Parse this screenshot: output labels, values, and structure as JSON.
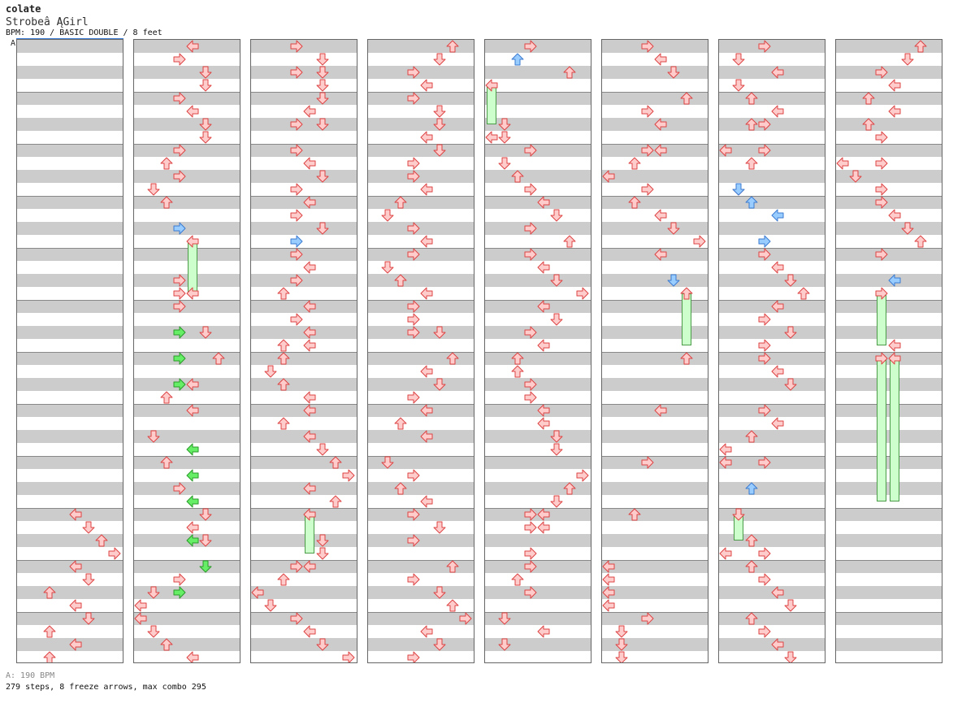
{
  "header": {
    "title": "colate",
    "subtitle": "Strobeâ ĄGirl",
    "meta": "BPM: 190 / BASIC DOUBLE / 8 feet",
    "bpm_marker": "A"
  },
  "footer": {
    "legend": "A: 190 BPM",
    "summary": "279 steps, 8 freeze arrows, max combo 295"
  },
  "colors": {
    "normal": "#ffcccc",
    "blue": "#99ccff",
    "green": "#66ee66",
    "freeze": "#ccffcc"
  },
  "chart": {
    "columns": 8,
    "rows_per_column": 48,
    "measure_every": 4,
    "lanes": 8,
    "notes": [
      [
        [
          36,
          4,
          "n"
        ],
        [
          37,
          5,
          "n"
        ],
        [
          38,
          6,
          "n"
        ],
        [
          39,
          7,
          "n"
        ],
        [
          40,
          4,
          "n"
        ],
        [
          41,
          5,
          "n"
        ],
        [
          42,
          2,
          "n"
        ],
        [
          43,
          4,
          "n"
        ],
        [
          44,
          5,
          "n"
        ],
        [
          45,
          2,
          "n"
        ],
        [
          46,
          4,
          "n"
        ],
        [
          47,
          2,
          "n"
        ]
      ],
      [
        [
          0,
          4,
          "n"
        ],
        [
          1,
          3,
          "n"
        ],
        [
          2,
          5,
          "n"
        ],
        [
          3,
          5,
          "n"
        ],
        [
          4,
          3,
          "n"
        ],
        [
          5,
          4,
          "n"
        ],
        [
          6,
          5,
          "n"
        ],
        [
          7,
          5,
          "n"
        ],
        [
          8,
          3,
          "n"
        ],
        [
          9,
          2,
          "n"
        ],
        [
          10,
          3,
          "n"
        ],
        [
          11,
          1,
          "n"
        ],
        [
          12,
          2,
          "n"
        ],
        [
          14,
          3,
          "b"
        ],
        [
          15,
          4,
          "n"
        ],
        [
          18,
          3,
          "n"
        ],
        [
          19,
          3,
          "n"
        ],
        [
          19,
          4,
          "n"
        ],
        [
          20,
          3,
          "n"
        ],
        [
          22,
          3,
          "g"
        ],
        [
          22,
          5,
          "n"
        ],
        [
          24,
          3,
          "g"
        ],
        [
          24,
          6,
          "n"
        ],
        [
          26,
          3,
          "g"
        ],
        [
          26,
          4,
          "n"
        ],
        [
          27,
          2,
          "n"
        ],
        [
          28,
          4,
          "n"
        ],
        [
          30,
          1,
          "n"
        ],
        [
          31,
          4,
          "g"
        ],
        [
          32,
          2,
          "n"
        ],
        [
          33,
          4,
          "g"
        ],
        [
          34,
          3,
          "n"
        ],
        [
          35,
          4,
          "g"
        ],
        [
          36,
          5,
          "n"
        ],
        [
          37,
          4,
          "n"
        ],
        [
          38,
          4,
          "g"
        ],
        [
          38,
          5,
          "n"
        ],
        [
          40,
          5,
          "g"
        ],
        [
          41,
          3,
          "n"
        ],
        [
          42,
          1,
          "n"
        ],
        [
          42,
          3,
          "g"
        ],
        [
          43,
          0,
          "n"
        ],
        [
          44,
          0,
          "n"
        ],
        [
          45,
          1,
          "n"
        ],
        [
          46,
          2,
          "n"
        ],
        [
          47,
          4,
          "n"
        ]
      ],
      [
        [
          0,
          3,
          "n"
        ],
        [
          1,
          5,
          "n"
        ],
        [
          2,
          3,
          "n"
        ],
        [
          2,
          5,
          "n"
        ],
        [
          3,
          5,
          "n"
        ],
        [
          4,
          5,
          "n"
        ],
        [
          5,
          4,
          "n"
        ],
        [
          6,
          3,
          "n"
        ],
        [
          6,
          5,
          "n"
        ],
        [
          8,
          3,
          "n"
        ],
        [
          9,
          4,
          "n"
        ],
        [
          10,
          5,
          "n"
        ],
        [
          11,
          3,
          "n"
        ],
        [
          12,
          4,
          "n"
        ],
        [
          13,
          3,
          "n"
        ],
        [
          14,
          5,
          "n"
        ],
        [
          15,
          3,
          "b"
        ],
        [
          16,
          3,
          "n"
        ],
        [
          17,
          4,
          "n"
        ],
        [
          18,
          3,
          "n"
        ],
        [
          19,
          2,
          "n"
        ],
        [
          20,
          4,
          "n"
        ],
        [
          21,
          3,
          "n"
        ],
        [
          22,
          4,
          "n"
        ],
        [
          23,
          2,
          "n"
        ],
        [
          23,
          4,
          "n"
        ],
        [
          24,
          2,
          "n"
        ],
        [
          25,
          1,
          "n"
        ],
        [
          26,
          2,
          "n"
        ],
        [
          27,
          4,
          "n"
        ],
        [
          28,
          4,
          "n"
        ],
        [
          29,
          2,
          "n"
        ],
        [
          30,
          4,
          "n"
        ],
        [
          31,
          5,
          "n"
        ],
        [
          32,
          6,
          "n"
        ],
        [
          33,
          7,
          "n"
        ],
        [
          34,
          4,
          "n"
        ],
        [
          35,
          6,
          "n"
        ],
        [
          36,
          4,
          "n"
        ],
        [
          38,
          5,
          "n"
        ],
        [
          39,
          5,
          "n"
        ],
        [
          40,
          3,
          "n"
        ],
        [
          40,
          4,
          "n"
        ],
        [
          41,
          2,
          "n"
        ],
        [
          42,
          0,
          "n"
        ],
        [
          43,
          1,
          "n"
        ],
        [
          44,
          3,
          "n"
        ],
        [
          45,
          4,
          "n"
        ],
        [
          46,
          5,
          "n"
        ],
        [
          47,
          7,
          "n"
        ]
      ],
      [
        [
          0,
          6,
          "n"
        ],
        [
          1,
          5,
          "n"
        ],
        [
          2,
          3,
          "n"
        ],
        [
          3,
          4,
          "n"
        ],
        [
          4,
          3,
          "n"
        ],
        [
          5,
          5,
          "n"
        ],
        [
          6,
          5,
          "n"
        ],
        [
          7,
          4,
          "n"
        ],
        [
          8,
          5,
          "n"
        ],
        [
          9,
          3,
          "n"
        ],
        [
          10,
          3,
          "n"
        ],
        [
          11,
          4,
          "n"
        ],
        [
          12,
          2,
          "n"
        ],
        [
          13,
          1,
          "n"
        ],
        [
          14,
          3,
          "n"
        ],
        [
          15,
          4,
          "n"
        ],
        [
          16,
          3,
          "n"
        ],
        [
          17,
          1,
          "n"
        ],
        [
          18,
          2,
          "n"
        ],
        [
          19,
          4,
          "n"
        ],
        [
          20,
          3,
          "n"
        ],
        [
          21,
          3,
          "n"
        ],
        [
          22,
          3,
          "n"
        ],
        [
          22,
          5,
          "n"
        ],
        [
          24,
          6,
          "n"
        ],
        [
          25,
          4,
          "n"
        ],
        [
          26,
          5,
          "n"
        ],
        [
          27,
          3,
          "n"
        ],
        [
          28,
          4,
          "n"
        ],
        [
          29,
          2,
          "n"
        ],
        [
          30,
          4,
          "n"
        ],
        [
          32,
          1,
          "n"
        ],
        [
          33,
          3,
          "n"
        ],
        [
          34,
          2,
          "n"
        ],
        [
          35,
          4,
          "n"
        ],
        [
          36,
          3,
          "n"
        ],
        [
          37,
          5,
          "n"
        ],
        [
          38,
          3,
          "n"
        ],
        [
          40,
          6,
          "n"
        ],
        [
          41,
          3,
          "n"
        ],
        [
          42,
          5,
          "n"
        ],
        [
          43,
          6,
          "n"
        ],
        [
          44,
          7,
          "n"
        ],
        [
          45,
          4,
          "n"
        ],
        [
          46,
          5,
          "n"
        ],
        [
          47,
          3,
          "n"
        ]
      ],
      [
        [
          0,
          3,
          "n"
        ],
        [
          1,
          2,
          "b"
        ],
        [
          2,
          6,
          "n"
        ],
        [
          3,
          0,
          "n"
        ],
        [
          6,
          1,
          "n"
        ],
        [
          7,
          0,
          "n"
        ],
        [
          7,
          1,
          "n"
        ],
        [
          8,
          3,
          "n"
        ],
        [
          9,
          1,
          "n"
        ],
        [
          10,
          2,
          "n"
        ],
        [
          11,
          3,
          "n"
        ],
        [
          12,
          4,
          "n"
        ],
        [
          13,
          5,
          "n"
        ],
        [
          14,
          3,
          "n"
        ],
        [
          15,
          6,
          "n"
        ],
        [
          16,
          3,
          "n"
        ],
        [
          17,
          4,
          "n"
        ],
        [
          18,
          5,
          "n"
        ],
        [
          19,
          7,
          "n"
        ],
        [
          20,
          4,
          "n"
        ],
        [
          21,
          5,
          "n"
        ],
        [
          22,
          3,
          "n"
        ],
        [
          23,
          4,
          "n"
        ],
        [
          24,
          2,
          "n"
        ],
        [
          25,
          2,
          "n"
        ],
        [
          26,
          3,
          "n"
        ],
        [
          27,
          3,
          "n"
        ],
        [
          28,
          4,
          "n"
        ],
        [
          29,
          4,
          "n"
        ],
        [
          30,
          5,
          "n"
        ],
        [
          31,
          5,
          "n"
        ],
        [
          33,
          7,
          "n"
        ],
        [
          34,
          6,
          "n"
        ],
        [
          35,
          5,
          "n"
        ],
        [
          36,
          3,
          "n"
        ],
        [
          36,
          4,
          "n"
        ],
        [
          37,
          3,
          "n"
        ],
        [
          37,
          4,
          "n"
        ],
        [
          39,
          3,
          "n"
        ],
        [
          40,
          3,
          "n"
        ],
        [
          41,
          2,
          "n"
        ],
        [
          42,
          3,
          "n"
        ],
        [
          44,
          1,
          "n"
        ],
        [
          45,
          4,
          "n"
        ],
        [
          46,
          1,
          "n"
        ]
      ],
      [
        [
          0,
          3,
          "n"
        ],
        [
          1,
          4,
          "n"
        ],
        [
          2,
          5,
          "n"
        ],
        [
          4,
          6,
          "n"
        ],
        [
          5,
          3,
          "n"
        ],
        [
          6,
          4,
          "n"
        ],
        [
          8,
          3,
          "n"
        ],
        [
          8,
          4,
          "n"
        ],
        [
          9,
          2,
          "n"
        ],
        [
          10,
          0,
          "n"
        ],
        [
          11,
          3,
          "n"
        ],
        [
          12,
          2,
          "n"
        ],
        [
          13,
          4,
          "n"
        ],
        [
          14,
          5,
          "n"
        ],
        [
          15,
          7,
          "n"
        ],
        [
          16,
          4,
          "n"
        ],
        [
          18,
          5,
          "b"
        ],
        [
          19,
          6,
          "n"
        ],
        [
          24,
          6,
          "n"
        ],
        [
          28,
          4,
          "n"
        ],
        [
          32,
          3,
          "n"
        ],
        [
          36,
          2,
          "n"
        ],
        [
          40,
          0,
          "n"
        ],
        [
          41,
          0,
          "n"
        ],
        [
          42,
          0,
          "n"
        ],
        [
          43,
          0,
          "n"
        ],
        [
          44,
          3,
          "n"
        ],
        [
          45,
          1,
          "n"
        ],
        [
          46,
          1,
          "n"
        ],
        [
          47,
          1,
          "n"
        ]
      ],
      [
        [
          0,
          3,
          "n"
        ],
        [
          1,
          1,
          "n"
        ],
        [
          2,
          4,
          "n"
        ],
        [
          3,
          1,
          "n"
        ],
        [
          4,
          2,
          "n"
        ],
        [
          5,
          4,
          "n"
        ],
        [
          6,
          2,
          "n"
        ],
        [
          6,
          3,
          "n"
        ],
        [
          8,
          0,
          "n"
        ],
        [
          8,
          3,
          "n"
        ],
        [
          9,
          2,
          "n"
        ],
        [
          11,
          1,
          "n"
        ],
        [
          11,
          1,
          "b"
        ],
        [
          12,
          2,
          "b"
        ],
        [
          13,
          4,
          "b"
        ],
        [
          15,
          3,
          "b"
        ],
        [
          16,
          3,
          "n"
        ],
        [
          17,
          4,
          "n"
        ],
        [
          18,
          5,
          "n"
        ],
        [
          19,
          6,
          "n"
        ],
        [
          20,
          4,
          "n"
        ],
        [
          21,
          3,
          "n"
        ],
        [
          22,
          5,
          "n"
        ],
        [
          23,
          3,
          "n"
        ],
        [
          24,
          3,
          "n"
        ],
        [
          25,
          4,
          "n"
        ],
        [
          26,
          5,
          "n"
        ],
        [
          28,
          3,
          "n"
        ],
        [
          29,
          4,
          "n"
        ],
        [
          30,
          2,
          "n"
        ],
        [
          31,
          0,
          "n"
        ],
        [
          32,
          0,
          "n"
        ],
        [
          32,
          3,
          "n"
        ],
        [
          34,
          2,
          "b"
        ],
        [
          36,
          1,
          "n"
        ],
        [
          38,
          2,
          "n"
        ],
        [
          39,
          0,
          "n"
        ],
        [
          39,
          3,
          "n"
        ],
        [
          40,
          2,
          "n"
        ],
        [
          41,
          3,
          "n"
        ],
        [
          42,
          4,
          "n"
        ],
        [
          43,
          5,
          "n"
        ],
        [
          44,
          2,
          "n"
        ],
        [
          45,
          3,
          "n"
        ],
        [
          46,
          4,
          "n"
        ],
        [
          47,
          5,
          "n"
        ]
      ],
      [
        [
          0,
          6,
          "n"
        ],
        [
          1,
          5,
          "n"
        ],
        [
          2,
          3,
          "n"
        ],
        [
          3,
          4,
          "n"
        ],
        [
          4,
          2,
          "n"
        ],
        [
          5,
          4,
          "n"
        ],
        [
          6,
          2,
          "n"
        ],
        [
          7,
          3,
          "n"
        ],
        [
          9,
          0,
          "n"
        ],
        [
          9,
          3,
          "n"
        ],
        [
          10,
          1,
          "n"
        ],
        [
          11,
          3,
          "n"
        ],
        [
          12,
          3,
          "n"
        ],
        [
          13,
          4,
          "n"
        ],
        [
          14,
          5,
          "n"
        ],
        [
          15,
          6,
          "n"
        ],
        [
          16,
          3,
          "n"
        ],
        [
          18,
          4,
          "b"
        ],
        [
          19,
          3,
          "n"
        ],
        [
          23,
          4,
          "n"
        ],
        [
          24,
          3,
          "n"
        ],
        [
          24,
          4,
          "n"
        ]
      ]
    ],
    "freezes": [
      [],
      [
        [
          15,
          19,
          4
        ]
      ],
      [
        [
          36,
          39,
          4
        ]
      ],
      [],
      [
        [
          3,
          6,
          0
        ]
      ],
      [
        [
          19,
          23,
          6
        ]
      ],
      [
        [
          36,
          38,
          1
        ]
      ],
      [
        [
          19,
          23,
          3
        ],
        [
          24,
          35,
          3
        ],
        [
          24,
          35,
          4
        ]
      ]
    ]
  }
}
